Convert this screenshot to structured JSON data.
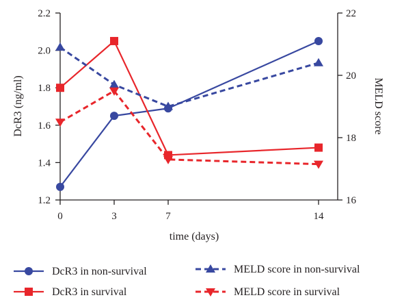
{
  "chart_data": {
    "type": "line",
    "x": [
      0,
      3,
      7,
      14
    ],
    "xlabel": "time (days)",
    "x_tick_labels": [
      "0",
      "3",
      "7",
      "14"
    ],
    "ylabel_left": "DcR3 (ng/ml)",
    "ylabel_right": "MELD score",
    "ylim_left": [
      1.2,
      2.2
    ],
    "ylim_right": [
      16,
      22
    ],
    "y_ticks_left": [
      "1.2",
      "1.4",
      "1.6",
      "1.8",
      "2.0",
      "2.2"
    ],
    "y_ticks_right": [
      "16",
      "18",
      "20",
      "22"
    ],
    "grid": false,
    "legend_position": "bottom",
    "series": [
      {
        "name": "DcR3 in non-survival",
        "axis": "left",
        "values": [
          1.27,
          1.65,
          1.69,
          2.05
        ],
        "color": "#3848a0",
        "dash": "solid",
        "marker": "circle"
      },
      {
        "name": "DcR3 in survival",
        "axis": "left",
        "values": [
          1.8,
          2.05,
          1.44,
          1.48
        ],
        "color": "#e8262b",
        "dash": "solid",
        "marker": "square"
      },
      {
        "name": "MELD score in non-survival",
        "axis": "right",
        "values": [
          20.9,
          19.7,
          19.0,
          20.4
        ],
        "color": "#3848a0",
        "dash": "dashed",
        "marker": "triangle-up"
      },
      {
        "name": "MELD score in survival",
        "axis": "right",
        "values": [
          18.5,
          19.5,
          17.3,
          17.15
        ],
        "color": "#e8262b",
        "dash": "dashed",
        "marker": "triangle-down"
      }
    ]
  }
}
